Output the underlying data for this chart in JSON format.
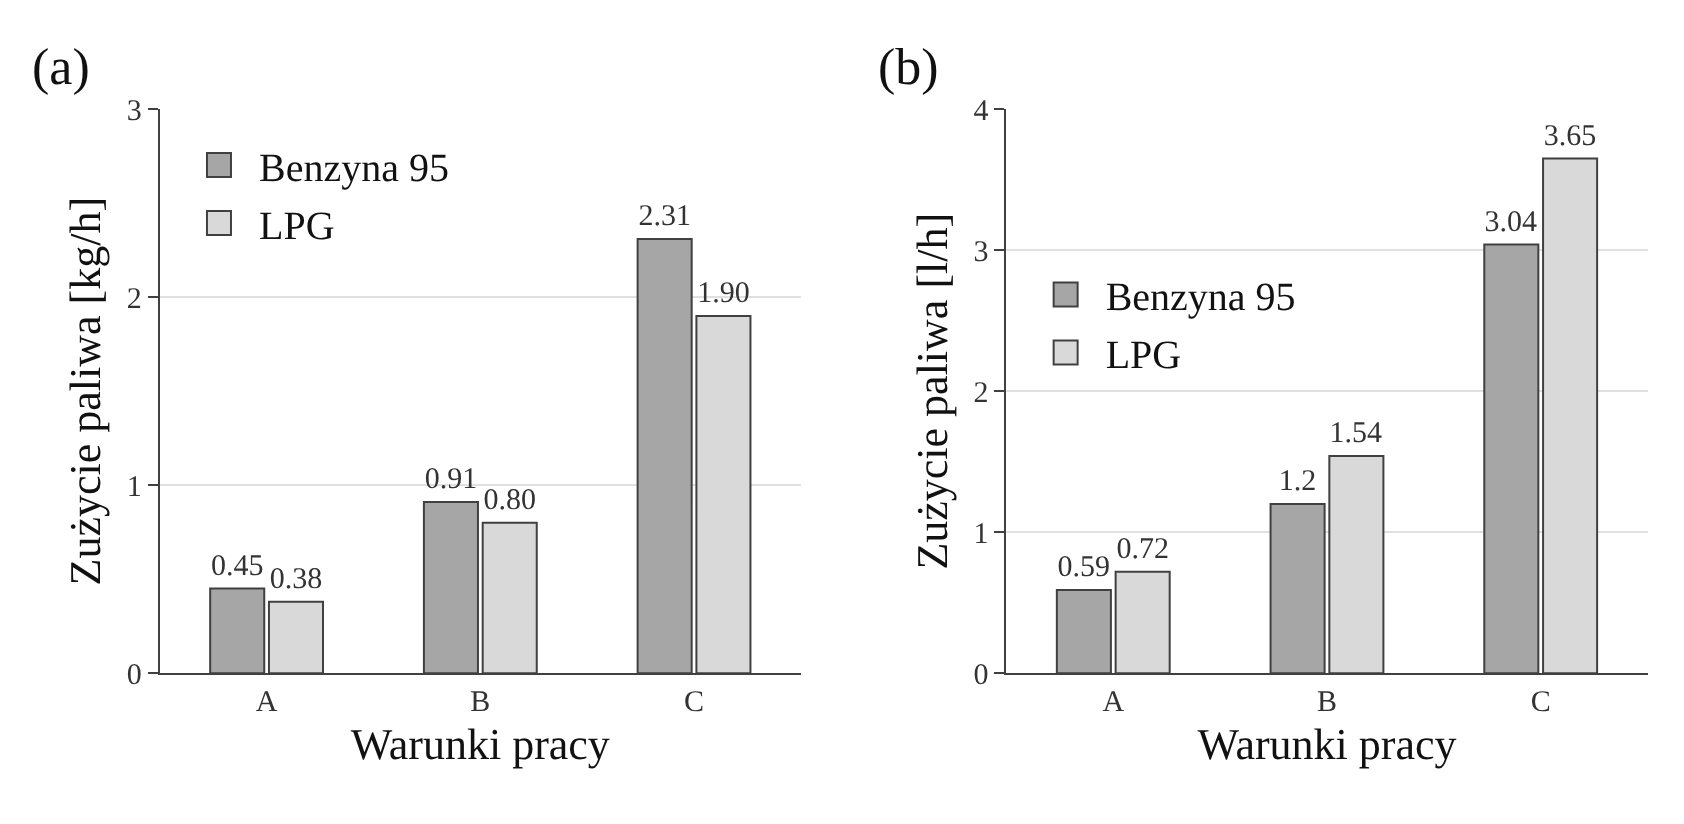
{
  "chart_data": [
    {
      "type": "bar",
      "title": "(a)",
      "xlabel": "Warunki pracy",
      "ylabel": "Zużycie paliwa [kg/h]",
      "categories": [
        "A",
        "B",
        "C"
      ],
      "series": [
        {
          "name": "Benzyna 95",
          "color": "#a6a6a6",
          "values": [
            0.45,
            0.91,
            2.31
          ],
          "value_labels": [
            "0.45",
            "0.91",
            "2.31"
          ]
        },
        {
          "name": "LPG",
          "color": "#d9d9d9",
          "values": [
            0.38,
            0.8,
            1.9
          ],
          "value_labels": [
            "0.38",
            "0.80",
            "1.90"
          ]
        }
      ],
      "ylim": [
        0,
        3
      ],
      "yticks": [
        0,
        1,
        2,
        3
      ],
      "grid": "y",
      "legend": "top left"
    },
    {
      "type": "bar",
      "title": "(b)",
      "xlabel": "Warunki pracy",
      "ylabel": "Zużycie paliwa [l/h]",
      "categories": [
        "A",
        "B",
        "C"
      ],
      "series": [
        {
          "name": "Benzyna 95",
          "color": "#a6a6a6",
          "values": [
            0.59,
            1.2,
            3.04
          ],
          "value_labels": [
            "0.59",
            "1.2",
            "3.04"
          ]
        },
        {
          "name": "LPG",
          "color": "#d9d9d9",
          "values": [
            0.72,
            1.54,
            3.65
          ],
          "value_labels": [
            "0.72",
            "1.54",
            "3.65"
          ]
        }
      ],
      "ylim": [
        0,
        4
      ],
      "yticks": [
        0,
        1,
        2,
        3,
        4
      ],
      "grid": "y",
      "legend": "left"
    }
  ]
}
